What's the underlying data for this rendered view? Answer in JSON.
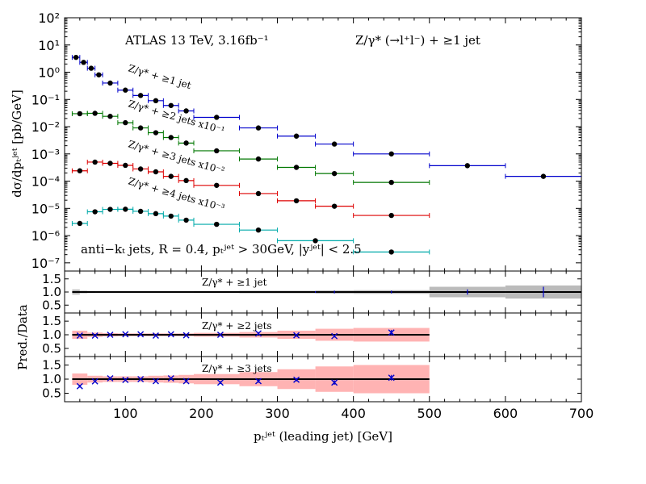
{
  "chart_data": {
    "type": "scatter",
    "experiment_label": "ATLAS 13 TeV, 3.16fb⁻¹",
    "process_label": "Z/γ* (→l⁺l⁻) + ≥1 jet",
    "selection_label": "anti−kₜ jets, R = 0.4, pₜʲᵉᵗ > 30GeV, |yʲᵉᵗ| < 2.5",
    "xlabel": "pₜʲᵉᵗ (leading jet) [GeV]",
    "ylabel": "dσ/dpₜʲᵉᵗ [pb/GeV]",
    "ratio_ylabel": "Pred./Data",
    "xlim": [
      20,
      700
    ],
    "ylim": [
      5e-08,
      100
    ],
    "log_y": true,
    "x_ticks": [
      "100",
      "200",
      "300",
      "400",
      "500",
      "600",
      "700"
    ],
    "y_ticks": [
      "10⁻⁷",
      "10⁻⁶",
      "10⁻⁵",
      "10⁻⁴",
      "10⁻³",
      "10⁻²",
      "10⁻¹",
      "10⁰",
      "10¹",
      "10²"
    ],
    "ratio_ylim": [
      0.2,
      1.8
    ],
    "ratio_ticks": [
      "0.5",
      "1.0",
      "1.5"
    ],
    "series": [
      {
        "name": "Z/γ* + ≥1 jet",
        "color": "#0000cc",
        "bins": [
          [
            30,
            40
          ],
          [
            40,
            50
          ],
          [
            50,
            60
          ],
          [
            60,
            70
          ],
          [
            70,
            90
          ],
          [
            90,
            110
          ],
          [
            110,
            130
          ],
          [
            130,
            150
          ],
          [
            150,
            170
          ],
          [
            170,
            190
          ],
          [
            190,
            250
          ],
          [
            250,
            300
          ],
          [
            300,
            350
          ],
          [
            350,
            400
          ],
          [
            400,
            500
          ],
          [
            500,
            600
          ],
          [
            600,
            700
          ]
        ],
        "x": [
          35,
          45,
          55,
          65,
          80,
          100,
          120,
          140,
          160,
          180,
          220,
          275,
          325,
          375,
          450,
          550,
          650
        ],
        "y": [
          3.5,
          2.3,
          1.4,
          0.8,
          0.4,
          0.22,
          0.14,
          0.09,
          0.06,
          0.038,
          0.022,
          0.009,
          0.0045,
          0.0023,
          0.001,
          0.00037,
          0.00015
        ]
      },
      {
        "name": "Z/γ* + ≥2 jets x10⁻¹",
        "color": "#007700",
        "bins": [
          [
            30,
            50
          ],
          [
            50,
            70
          ],
          [
            70,
            90
          ],
          [
            90,
            110
          ],
          [
            110,
            130
          ],
          [
            130,
            150
          ],
          [
            150,
            170
          ],
          [
            170,
            190
          ],
          [
            190,
            250
          ],
          [
            250,
            300
          ],
          [
            300,
            350
          ],
          [
            350,
            400
          ],
          [
            400,
            500
          ]
        ],
        "x": [
          40,
          60,
          80,
          100,
          120,
          140,
          160,
          180,
          220,
          275,
          325,
          375,
          450
        ],
        "y": [
          0.03,
          0.031,
          0.024,
          0.014,
          0.009,
          0.006,
          0.004,
          0.0025,
          0.0013,
          0.00065,
          0.00032,
          0.00019,
          9e-05
        ]
      },
      {
        "name": "Z/γ* + ≥3 jets x10⁻²",
        "color": "#dd0000",
        "bins": [
          [
            30,
            50
          ],
          [
            50,
            70
          ],
          [
            70,
            90
          ],
          [
            90,
            110
          ],
          [
            110,
            130
          ],
          [
            130,
            150
          ],
          [
            150,
            170
          ],
          [
            170,
            190
          ],
          [
            190,
            250
          ],
          [
            250,
            300
          ],
          [
            300,
            350
          ],
          [
            350,
            400
          ],
          [
            400,
            500
          ]
        ],
        "x": [
          40,
          60,
          80,
          100,
          120,
          140,
          160,
          180,
          220,
          275,
          325,
          375,
          450
        ],
        "y": [
          0.00024,
          0.0005,
          0.00045,
          0.00038,
          0.00028,
          0.00022,
          0.00015,
          0.000105,
          7e-05,
          3.5e-05,
          1.9e-05,
          1.2e-05,
          5.5e-06
        ]
      },
      {
        "name": "Z/γ* + ≥4 jets x10⁻³",
        "color": "#00aaaa",
        "bins": [
          [
            30,
            50
          ],
          [
            50,
            70
          ],
          [
            70,
            90
          ],
          [
            90,
            110
          ],
          [
            110,
            130
          ],
          [
            130,
            150
          ],
          [
            150,
            170
          ],
          [
            170,
            190
          ],
          [
            190,
            250
          ],
          [
            250,
            300
          ],
          [
            300,
            400
          ],
          [
            400,
            500
          ]
        ],
        "x": [
          40,
          60,
          80,
          100,
          120,
          140,
          160,
          180,
          220,
          275,
          350,
          450
        ],
        "y": [
          2.8e-06,
          7.5e-06,
          9.2e-06,
          9.3e-06,
          7.8e-06,
          6.4e-06,
          5.2e-06,
          3.7e-06,
          2.6e-06,
          1.6e-06,
          6.5e-07,
          2.5e-07
        ]
      }
    ],
    "ratios": [
      {
        "label": "Z/γ* + ≥1 jet",
        "band_color": "#bbbbbb",
        "bins": [
          [
            30,
            40
          ],
          [
            40,
            50
          ],
          [
            50,
            60
          ],
          [
            60,
            70
          ],
          [
            70,
            90
          ],
          [
            90,
            110
          ],
          [
            110,
            130
          ],
          [
            130,
            150
          ],
          [
            150,
            170
          ],
          [
            170,
            190
          ],
          [
            190,
            250
          ],
          [
            250,
            300
          ],
          [
            300,
            350
          ],
          [
            350,
            400
          ],
          [
            400,
            500
          ],
          [
            500,
            600
          ],
          [
            600,
            700
          ]
        ],
        "band_low": [
          0.9,
          0.95,
          0.96,
          0.97,
          0.97,
          0.97,
          0.97,
          0.97,
          0.97,
          0.97,
          0.96,
          0.95,
          0.95,
          0.94,
          0.93,
          0.8,
          0.75
        ],
        "band_high": [
          1.1,
          1.05,
          1.04,
          1.03,
          1.03,
          1.03,
          1.03,
          1.03,
          1.03,
          1.03,
          1.04,
          1.05,
          1.05,
          1.06,
          1.07,
          1.2,
          1.25
        ],
        "x": [
          350,
          375,
          450,
          550,
          650
        ],
        "values": [
          1.0,
          1.0,
          1.0,
          1.0,
          1.0
        ],
        "err": [
          0.03,
          0.05,
          0.05,
          0.1,
          0.2
        ]
      },
      {
        "label": "Z/γ* + ≥2 jets",
        "band_color": "#ffb3b3",
        "bins": [
          [
            30,
            50
          ],
          [
            50,
            70
          ],
          [
            70,
            90
          ],
          [
            90,
            110
          ],
          [
            110,
            130
          ],
          [
            130,
            150
          ],
          [
            150,
            170
          ],
          [
            170,
            190
          ],
          [
            190,
            250
          ],
          [
            250,
            300
          ],
          [
            300,
            350
          ],
          [
            350,
            400
          ],
          [
            400,
            500
          ]
        ],
        "band_low": [
          0.85,
          0.92,
          0.94,
          0.95,
          0.95,
          0.95,
          0.95,
          0.95,
          0.93,
          0.9,
          0.85,
          0.78,
          0.75
        ],
        "band_high": [
          1.15,
          1.08,
          1.06,
          1.05,
          1.05,
          1.05,
          1.05,
          1.05,
          1.07,
          1.1,
          1.15,
          1.22,
          1.25
        ],
        "x": [
          40,
          60,
          80,
          100,
          120,
          140,
          160,
          180,
          225,
          275,
          325,
          375,
          450
        ],
        "values": [
          0.97,
          0.97,
          1.0,
          1.02,
          1.02,
          0.97,
          1.02,
          0.98,
          1.0,
          1.05,
          0.98,
          0.95,
          1.08
        ],
        "err": [
          0.02,
          0.02,
          0.02,
          0.02,
          0.02,
          0.02,
          0.02,
          0.02,
          0.03,
          0.05,
          0.05,
          0.05,
          0.1
        ]
      },
      {
        "label": "Z/γ* + ≥3 jets",
        "band_color": "#ffb3b3",
        "bins": [
          [
            30,
            50
          ],
          [
            50,
            70
          ],
          [
            70,
            90
          ],
          [
            90,
            110
          ],
          [
            110,
            130
          ],
          [
            130,
            150
          ],
          [
            150,
            170
          ],
          [
            170,
            190
          ],
          [
            190,
            250
          ],
          [
            250,
            300
          ],
          [
            300,
            350
          ],
          [
            350,
            400
          ],
          [
            400,
            500
          ]
        ],
        "band_low": [
          0.8,
          0.88,
          0.9,
          0.9,
          0.9,
          0.88,
          0.87,
          0.85,
          0.82,
          0.75,
          0.65,
          0.55,
          0.5
        ],
        "band_high": [
          1.2,
          1.12,
          1.1,
          1.1,
          1.1,
          1.12,
          1.13,
          1.15,
          1.18,
          1.25,
          1.35,
          1.45,
          1.5
        ],
        "x": [
          40,
          60,
          80,
          100,
          120,
          140,
          160,
          180,
          225,
          275,
          325,
          375,
          450
        ],
        "values": [
          0.75,
          0.92,
          1.03,
          0.97,
          1.0,
          0.93,
          1.03,
          0.93,
          0.88,
          0.93,
          0.98,
          0.88,
          1.05
        ],
        "err": [
          0.05,
          0.03,
          0.03,
          0.03,
          0.03,
          0.03,
          0.03,
          0.04,
          0.05,
          0.06,
          0.06,
          0.08,
          0.1
        ]
      }
    ]
  }
}
